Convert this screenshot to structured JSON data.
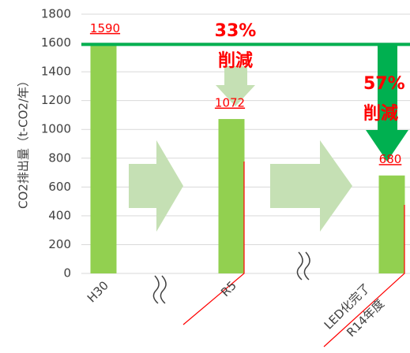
{
  "chart_data": {
    "type": "bar",
    "y_label": "CO2排出量（t-CO2/年）",
    "categories": [
      "H30",
      "R5",
      [
        "LED化完了",
        "R14年度"
      ]
    ],
    "values": [
      1590,
      1072,
      680
    ],
    "color": "#92d050",
    "label_color": "#ff0000",
    "ylim": [
      0,
      1800
    ],
    "yticks": [
      0,
      200,
      400,
      600,
      800,
      1000,
      1200,
      1400,
      1600,
      1800
    ],
    "grid": true,
    "annotations": [
      {
        "percent": "33%",
        "text": "削減"
      },
      {
        "percent": "57%",
        "text": "削減"
      }
    ]
  }
}
